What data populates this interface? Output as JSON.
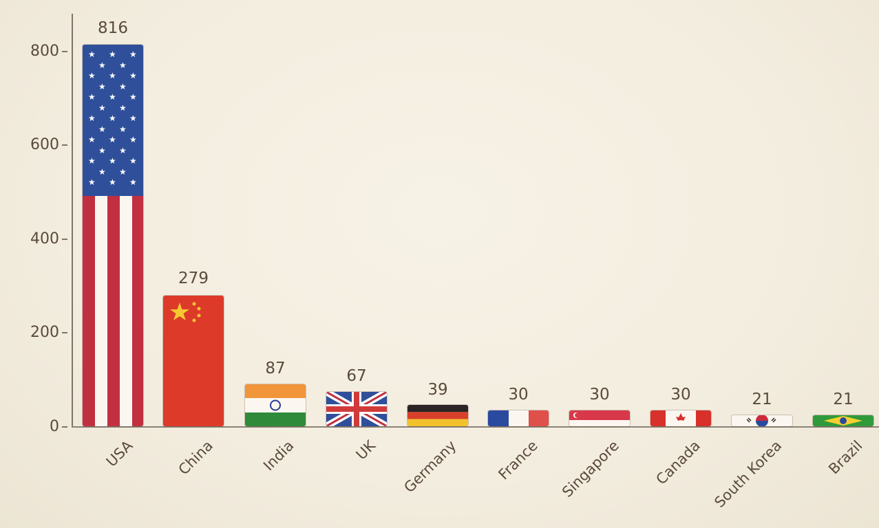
{
  "chart_data": {
    "type": "bar",
    "title": "",
    "xlabel": "",
    "ylabel": "",
    "ylim": [
      0,
      850
    ],
    "yticks": [
      0,
      200,
      400,
      600,
      800
    ],
    "grid": false,
    "legend": null,
    "categories": [
      "USA",
      "China",
      "India",
      "UK",
      "Germany",
      "France",
      "Singapore",
      "Canada",
      "South Korea",
      "Brazil"
    ],
    "values": [
      816,
      279,
      87,
      67,
      39,
      30,
      30,
      30,
      21,
      21
    ],
    "bar_style": "watercolor national flags",
    "annotations": [
      "816",
      "279",
      "87",
      "67",
      "39",
      "30",
      "30",
      "30",
      "21",
      "21"
    ]
  },
  "axis": {
    "ytick_labels": [
      "0",
      "200",
      "400",
      "600",
      "800"
    ]
  },
  "bars": [
    {
      "label": "USA",
      "value": "816",
      "flag": "usa-flag"
    },
    {
      "label": "China",
      "value": "279",
      "flag": "china-flag"
    },
    {
      "label": "India",
      "value": "87",
      "flag": "india-flag"
    },
    {
      "label": "UK",
      "value": "67",
      "flag": "uk-flag"
    },
    {
      "label": "Germany",
      "value": "39",
      "flag": "germany-flag"
    },
    {
      "label": "France",
      "value": "30",
      "flag": "france-flag"
    },
    {
      "label": "Singapore",
      "value": "30",
      "flag": "singapore-flag"
    },
    {
      "label": "Canada",
      "value": "30",
      "flag": "canada-flag"
    },
    {
      "label": "South Korea",
      "value": "21",
      "flag": "south-korea-flag"
    },
    {
      "label": "Brazil",
      "value": "21",
      "flag": "brazil-flag"
    }
  ],
  "colors": {
    "text": "#5a4a3a",
    "axis": "#7d7468",
    "background": "#f4efe2",
    "usa_blue": "#2f4f9a",
    "usa_red": "#c03040",
    "china_red": "#dd3a2a",
    "china_yellow": "#f5c830",
    "india_saffron": "#f0953a",
    "india_green": "#2f8a3a",
    "germany_black": "#2a2424",
    "germany_red": "#d8402a",
    "germany_gold": "#f2c22a",
    "france_blue": "#2a4aa0",
    "france_red": "#e0504a",
    "brazil_green": "#2f9a3a"
  }
}
